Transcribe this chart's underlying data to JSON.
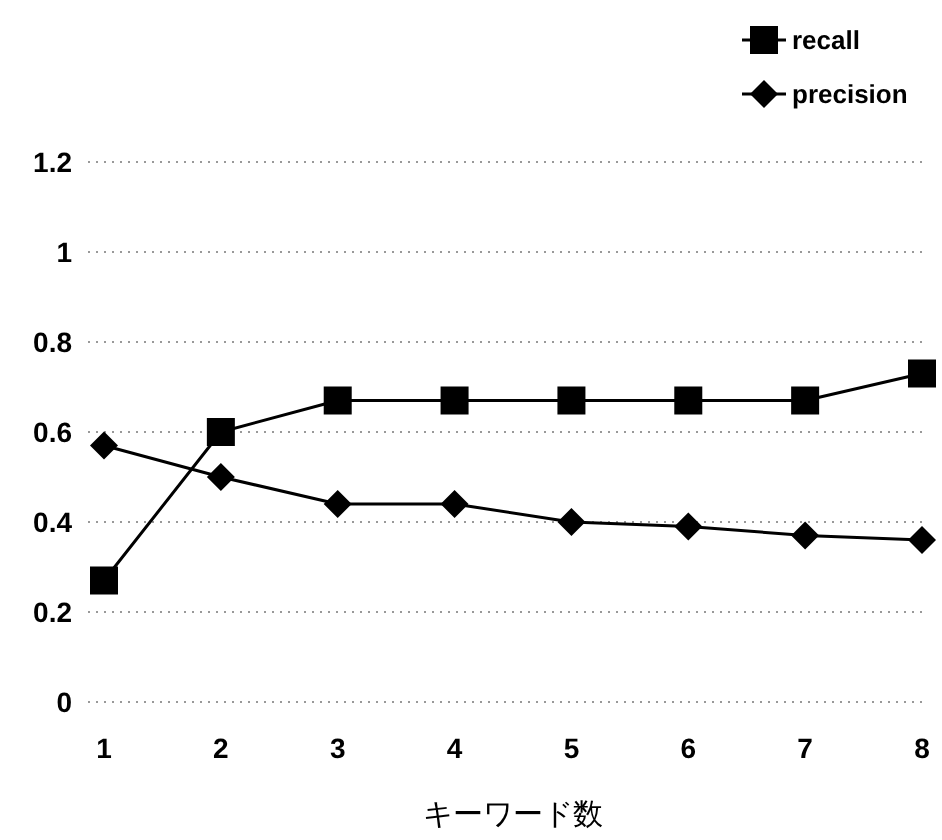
{
  "chart_data": {
    "type": "line",
    "xlabel": "キーワード数",
    "categories": [
      "1",
      "2",
      "3",
      "4",
      "5",
      "6",
      "7",
      "8"
    ],
    "series": [
      {
        "name": "recall",
        "color": "#000000",
        "marker": "square",
        "values": [
          0.27,
          0.6,
          0.67,
          0.67,
          0.67,
          0.67,
          0.67,
          0.73
        ]
      },
      {
        "name": "precision",
        "color": "#000000",
        "marker": "diamond",
        "values": [
          0.57,
          0.5,
          0.44,
          0.44,
          0.4,
          0.39,
          0.37,
          0.36
        ]
      }
    ],
    "ylim": [
      0,
      1.2
    ],
    "yticks": [
      0,
      0.2,
      0.4,
      0.6,
      0.8,
      1,
      1.2
    ],
    "grid": "y",
    "legend": "top right",
    "line_style": "solid"
  }
}
